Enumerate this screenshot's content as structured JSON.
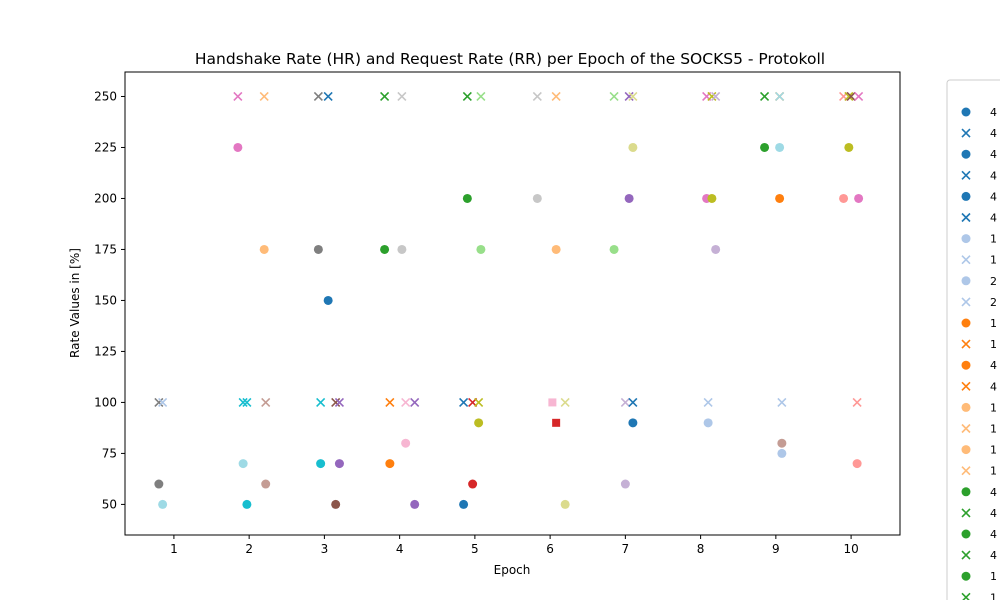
{
  "chart_data": {
    "type": "scatter",
    "title": "Handshake Rate (HR) and Request Rate (RR) per Epoch of the SOCKS5 - Protokoll",
    "xlabel": "Epoch",
    "ylabel": "Rate Values in [%]",
    "xlim": [
      0.35,
      10.65
    ],
    "ylim": [
      35,
      262
    ],
    "xticks": [
      1,
      2,
      3,
      4,
      5,
      6,
      7,
      8,
      9,
      10
    ],
    "yticks": [
      50,
      75,
      100,
      125,
      150,
      175,
      200,
      225,
      250
    ],
    "grid": false,
    "legend_position": "right (clipped)",
    "legend": [
      {
        "marker": "circle",
        "color": "#1f77b4",
        "label": "4"
      },
      {
        "marker": "x",
        "color": "#1f77b4",
        "label": "4"
      },
      {
        "marker": "circle",
        "color": "#1f77b4",
        "label": "4"
      },
      {
        "marker": "x",
        "color": "#1f77b4",
        "label": "4"
      },
      {
        "marker": "circle",
        "color": "#1f77b4",
        "label": "4"
      },
      {
        "marker": "x",
        "color": "#1f77b4",
        "label": "4"
      },
      {
        "marker": "circle",
        "color": "#aec7e8",
        "label": "1"
      },
      {
        "marker": "x",
        "color": "#aec7e8",
        "label": "1"
      },
      {
        "marker": "circle",
        "color": "#aec7e8",
        "label": "2"
      },
      {
        "marker": "x",
        "color": "#aec7e8",
        "label": "2"
      },
      {
        "marker": "circle",
        "color": "#ff7f0e",
        "label": "1"
      },
      {
        "marker": "x",
        "color": "#ff7f0e",
        "label": "1"
      },
      {
        "marker": "circle",
        "color": "#ff7f0e",
        "label": "4"
      },
      {
        "marker": "x",
        "color": "#ff7f0e",
        "label": "4"
      },
      {
        "marker": "circle",
        "color": "#ffbb78",
        "label": "1"
      },
      {
        "marker": "x",
        "color": "#ffbb78",
        "label": "1"
      },
      {
        "marker": "circle",
        "color": "#ffbb78",
        "label": "1"
      },
      {
        "marker": "x",
        "color": "#ffbb78",
        "label": "1"
      },
      {
        "marker": "circle",
        "color": "#2ca02c",
        "label": "4"
      },
      {
        "marker": "x",
        "color": "#2ca02c",
        "label": "4"
      },
      {
        "marker": "circle",
        "color": "#2ca02c",
        "label": "4"
      },
      {
        "marker": "x",
        "color": "#2ca02c",
        "label": "4"
      },
      {
        "marker": "circle",
        "color": "#2ca02c",
        "label": "1"
      },
      {
        "marker": "x",
        "color": "#2ca02c",
        "label": "1"
      }
    ],
    "points": [
      {
        "x": 0.8,
        "y": 60,
        "marker": "circle",
        "color": "#7f7f7f"
      },
      {
        "x": 0.85,
        "y": 50,
        "marker": "circle",
        "color": "#9edae5"
      },
      {
        "x": 0.8,
        "y": 100,
        "marker": "x",
        "color": "#7f7f7f"
      },
      {
        "x": 0.85,
        "y": 100,
        "marker": "x",
        "color": "#aec7e8"
      },
      {
        "x": 1.85,
        "y": 225,
        "marker": "circle",
        "color": "#e377c2"
      },
      {
        "x": 1.85,
        "y": 250,
        "marker": "x",
        "color": "#e377c2"
      },
      {
        "x": 1.92,
        "y": 70,
        "marker": "circle",
        "color": "#9edae5"
      },
      {
        "x": 1.97,
        "y": 50,
        "marker": "circle",
        "color": "#17becf"
      },
      {
        "x": 1.92,
        "y": 100,
        "marker": "x",
        "color": "#17becf"
      },
      {
        "x": 1.97,
        "y": 100,
        "marker": "x",
        "color": "#17becf"
      },
      {
        "x": 2.2,
        "y": 175,
        "marker": "circle",
        "color": "#ffbb78"
      },
      {
        "x": 2.2,
        "y": 250,
        "marker": "x",
        "color": "#ffbb78"
      },
      {
        "x": 2.22,
        "y": 60,
        "marker": "circle",
        "color": "#c49c94"
      },
      {
        "x": 2.22,
        "y": 100,
        "marker": "x",
        "color": "#c49c94"
      },
      {
        "x": 2.92,
        "y": 175,
        "marker": "circle",
        "color": "#7f7f7f"
      },
      {
        "x": 2.92,
        "y": 250,
        "marker": "x",
        "color": "#7f7f7f"
      },
      {
        "x": 3.05,
        "y": 150,
        "marker": "circle",
        "color": "#1f77b4"
      },
      {
        "x": 3.05,
        "y": 250,
        "marker": "x",
        "color": "#1f77b4"
      },
      {
        "x": 2.95,
        "y": 70,
        "marker": "circle",
        "color": "#17becf"
      },
      {
        "x": 2.95,
        "y": 100,
        "marker": "x",
        "color": "#17becf"
      },
      {
        "x": 3.15,
        "y": 50,
        "marker": "circle",
        "color": "#8c564b"
      },
      {
        "x": 3.15,
        "y": 100,
        "marker": "x",
        "color": "#8c564b"
      },
      {
        "x": 3.2,
        "y": 70,
        "marker": "circle",
        "color": "#9467bd"
      },
      {
        "x": 3.2,
        "y": 100,
        "marker": "x",
        "color": "#9467bd"
      },
      {
        "x": 3.8,
        "y": 175,
        "marker": "circle",
        "color": "#2ca02c"
      },
      {
        "x": 3.8,
        "y": 250,
        "marker": "x",
        "color": "#2ca02c"
      },
      {
        "x": 3.87,
        "y": 70,
        "marker": "circle",
        "color": "#ff7f0e"
      },
      {
        "x": 3.87,
        "y": 100,
        "marker": "x",
        "color": "#ff7f0e"
      },
      {
        "x": 4.03,
        "y": 175,
        "marker": "circle",
        "color": "#c7c7c7"
      },
      {
        "x": 4.03,
        "y": 250,
        "marker": "x",
        "color": "#c7c7c7"
      },
      {
        "x": 4.08,
        "y": 80,
        "marker": "circle",
        "color": "#f7b6d2"
      },
      {
        "x": 4.08,
        "y": 100,
        "marker": "x",
        "color": "#f7b6d2"
      },
      {
        "x": 4.2,
        "y": 50,
        "marker": "circle",
        "color": "#9467bd"
      },
      {
        "x": 4.2,
        "y": 100,
        "marker": "x",
        "color": "#9467bd"
      },
      {
        "x": 4.85,
        "y": 50,
        "marker": "circle",
        "color": "#1f77b4"
      },
      {
        "x": 4.85,
        "y": 100,
        "marker": "x",
        "color": "#1f77b4"
      },
      {
        "x": 4.9,
        "y": 200,
        "marker": "circle",
        "color": "#2ca02c"
      },
      {
        "x": 4.9,
        "y": 250,
        "marker": "x",
        "color": "#2ca02c"
      },
      {
        "x": 4.97,
        "y": 60,
        "marker": "circle",
        "color": "#d62728"
      },
      {
        "x": 4.97,
        "y": 100,
        "marker": "x",
        "color": "#d62728"
      },
      {
        "x": 5.05,
        "y": 90,
        "marker": "circle",
        "color": "#bcbd22"
      },
      {
        "x": 5.05,
        "y": 100,
        "marker": "x",
        "color": "#bcbd22"
      },
      {
        "x": 5.08,
        "y": 175,
        "marker": "circle",
        "color": "#98df8a"
      },
      {
        "x": 5.08,
        "y": 250,
        "marker": "x",
        "color": "#98df8a"
      },
      {
        "x": 5.83,
        "y": 200,
        "marker": "circle",
        "color": "#c7c7c7"
      },
      {
        "x": 5.83,
        "y": 250,
        "marker": "x",
        "color": "#c7c7c7"
      },
      {
        "x": 6.03,
        "y": 100,
        "marker": "square",
        "color": "#f7b6d2"
      },
      {
        "x": 6.08,
        "y": 90,
        "marker": "square",
        "color": "#d62728"
      },
      {
        "x": 6.08,
        "y": 175,
        "marker": "circle",
        "color": "#ffbb78"
      },
      {
        "x": 6.08,
        "y": 250,
        "marker": "x",
        "color": "#ffbb78"
      },
      {
        "x": 6.2,
        "y": 50,
        "marker": "circle",
        "color": "#dbdb8d"
      },
      {
        "x": 6.2,
        "y": 100,
        "marker": "x",
        "color": "#dbdb8d"
      },
      {
        "x": 6.85,
        "y": 175,
        "marker": "circle",
        "color": "#98df8a"
      },
      {
        "x": 6.85,
        "y": 250,
        "marker": "x",
        "color": "#98df8a"
      },
      {
        "x": 7.0,
        "y": 60,
        "marker": "circle",
        "color": "#c5b0d5"
      },
      {
        "x": 7.0,
        "y": 100,
        "marker": "x",
        "color": "#c5b0d5"
      },
      {
        "x": 7.05,
        "y": 200,
        "marker": "circle",
        "color": "#9467bd"
      },
      {
        "x": 7.05,
        "y": 250,
        "marker": "x",
        "color": "#9467bd"
      },
      {
        "x": 7.1,
        "y": 225,
        "marker": "circle",
        "color": "#dbdb8d"
      },
      {
        "x": 7.1,
        "y": 250,
        "marker": "x",
        "color": "#dbdb8d"
      },
      {
        "x": 7.1,
        "y": 90,
        "marker": "circle",
        "color": "#1f77b4"
      },
      {
        "x": 7.1,
        "y": 100,
        "marker": "x",
        "color": "#1f77b4"
      },
      {
        "x": 8.08,
        "y": 200,
        "marker": "circle",
        "color": "#e377c2"
      },
      {
        "x": 8.08,
        "y": 250,
        "marker": "x",
        "color": "#e377c2"
      },
      {
        "x": 8.1,
        "y": 90,
        "marker": "circle",
        "color": "#aec7e8"
      },
      {
        "x": 8.1,
        "y": 100,
        "marker": "x",
        "color": "#aec7e8"
      },
      {
        "x": 8.15,
        "y": 200,
        "marker": "circle",
        "color": "#bcbd22"
      },
      {
        "x": 8.15,
        "y": 250,
        "marker": "x",
        "color": "#bcbd22"
      },
      {
        "x": 8.2,
        "y": 175,
        "marker": "circle",
        "color": "#c5b0d5"
      },
      {
        "x": 8.2,
        "y": 250,
        "marker": "x",
        "color": "#c5b0d5"
      },
      {
        "x": 8.85,
        "y": 225,
        "marker": "circle",
        "color": "#2ca02c"
      },
      {
        "x": 8.85,
        "y": 250,
        "marker": "x",
        "color": "#2ca02c"
      },
      {
        "x": 9.05,
        "y": 200,
        "marker": "circle",
        "color": "#ff7f0e"
      },
      {
        "x": 9.05,
        "y": 250,
        "marker": "x",
        "color": "#ff7f0e"
      },
      {
        "x": 9.05,
        "y": 225,
        "marker": "circle",
        "color": "#9edae5"
      },
      {
        "x": 9.05,
        "y": 250,
        "marker": "x",
        "color": "#9edae5"
      },
      {
        "x": 9.08,
        "y": 75,
        "marker": "circle",
        "color": "#aec7e8"
      },
      {
        "x": 9.08,
        "y": 100,
        "marker": "x",
        "color": "#aec7e8"
      },
      {
        "x": 9.08,
        "y": 80,
        "marker": "circle",
        "color": "#c49c94"
      },
      {
        "x": 9.9,
        "y": 200,
        "marker": "circle",
        "color": "#ff9896"
      },
      {
        "x": 9.9,
        "y": 250,
        "marker": "x",
        "color": "#ff9896"
      },
      {
        "x": 9.97,
        "y": 225,
        "marker": "circle",
        "color": "#bcbd22"
      },
      {
        "x": 9.97,
        "y": 250,
        "marker": "x",
        "color": "#bcbd22"
      },
      {
        "x": 10.0,
        "y": 250,
        "marker": "x",
        "color": "#8c564b"
      },
      {
        "x": 10.08,
        "y": 70,
        "marker": "circle",
        "color": "#ff9896"
      },
      {
        "x": 10.08,
        "y": 100,
        "marker": "x",
        "color": "#ff9896"
      },
      {
        "x": 10.1,
        "y": 200,
        "marker": "circle",
        "color": "#e377c2"
      },
      {
        "x": 10.1,
        "y": 250,
        "marker": "x",
        "color": "#e377c2"
      }
    ]
  }
}
